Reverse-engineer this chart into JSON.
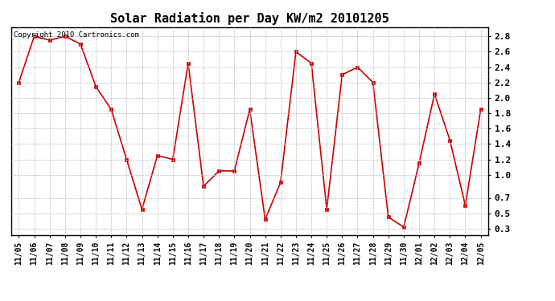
{
  "title": "Solar Radiation per Day KW/m2 20101205",
  "copyright_text": "Copyright 2010 Cartronics.com",
  "x_labels": [
    "11/05",
    "11/06",
    "11/07",
    "11/08",
    "11/09",
    "11/10",
    "11/11",
    "11/12",
    "11/13",
    "11/14",
    "11/15",
    "11/16",
    "11/17",
    "11/18",
    "11/19",
    "11/20",
    "11/21",
    "11/22",
    "11/23",
    "11/24",
    "11/25",
    "11/26",
    "11/27",
    "11/28",
    "11/29",
    "11/30",
    "12/01",
    "12/02",
    "12/03",
    "12/04",
    "12/05"
  ],
  "y_values": [
    2.2,
    2.8,
    2.75,
    2.8,
    2.7,
    2.15,
    1.85,
    1.2,
    0.55,
    1.25,
    1.2,
    2.45,
    0.85,
    1.05,
    1.05,
    1.85,
    0.42,
    0.9,
    2.6,
    2.45,
    0.55,
    2.3,
    2.4,
    2.2,
    0.45,
    0.32,
    1.15,
    2.05,
    1.45,
    0.6,
    1.85
  ],
  "line_color": "#cc0000",
  "marker": "s",
  "marker_size": 2.5,
  "line_width": 1.2,
  "ylim": [
    0.22,
    2.92
  ],
  "yticks": [
    0.3,
    0.5,
    0.7,
    1.0,
    1.2,
    1.4,
    1.6,
    1.8,
    2.0,
    2.2,
    2.4,
    2.6,
    2.8
  ],
  "bg_color": "#ffffff",
  "plot_bg_color": "#ffffff",
  "grid_color": "#bbbbbb",
  "title_fontsize": 11,
  "tick_fontsize": 7,
  "copyright_fontsize": 6.5,
  "border_color": "#000000"
}
